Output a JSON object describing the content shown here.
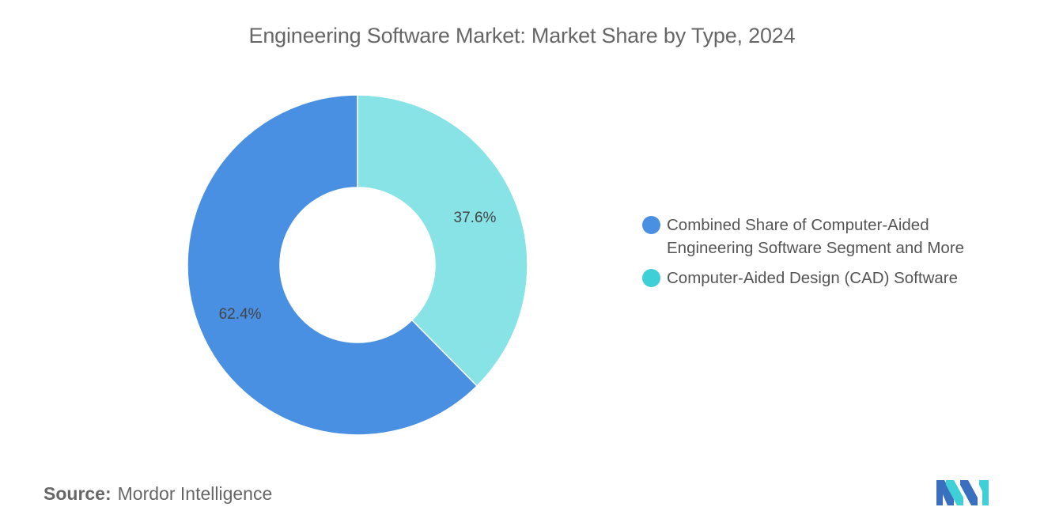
{
  "title": "Engineering Software Market: Market Share by Type, 2024",
  "chart_data": {
    "type": "pie",
    "donut": true,
    "title": "Engineering Software Market: Market Share by Type, 2024",
    "slices": [
      {
        "label": "Combined Share of Computer-Aided Engineering Software Segment and More",
        "value": 62.4,
        "value_label": "62.4%",
        "color": "#4a90e2"
      },
      {
        "label": "Computer-Aided Design (CAD) Software",
        "value": 37.6,
        "value_label": "37.6%",
        "color": "#87e3e6"
      }
    ],
    "legend_position": "right"
  },
  "legend": {
    "items": [
      {
        "line1": "Combined Share of Computer-Aided",
        "line2": "Engineering Software Segment and More",
        "color": "#4a90e2"
      },
      {
        "line1": "Computer-Aided Design (CAD) Software",
        "line2": "",
        "color": "#3fcfd6"
      }
    ]
  },
  "source": {
    "label": "Source:",
    "text": "Mordor Intelligence"
  },
  "logo": {
    "name": "mordor-intelligence-logo",
    "colors": [
      "#3a6fbf",
      "#3fcfd6"
    ]
  }
}
